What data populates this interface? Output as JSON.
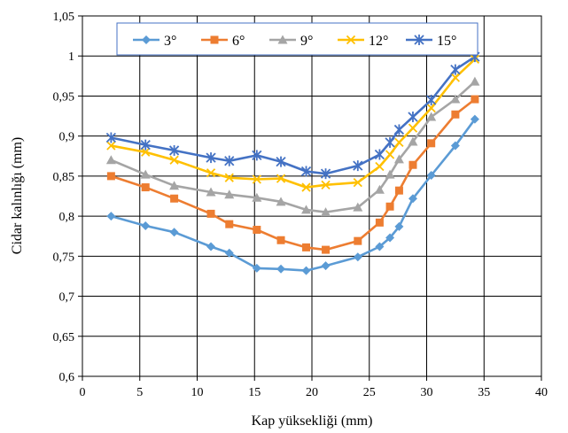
{
  "chart_data": {
    "type": "line",
    "title": "",
    "xlabel": "Kap yüksekliği (mm)",
    "ylabel": "Cidar kalınlığı (mm)",
    "xlim": [
      0,
      40
    ],
    "ylim": [
      0.6,
      1.05
    ],
    "x_ticks": [
      0,
      5,
      10,
      15,
      20,
      25,
      30,
      35,
      40
    ],
    "y_ticks": [
      0.6,
      0.65,
      0.7,
      0.75,
      0.8,
      0.85,
      0.9,
      0.95,
      1.0,
      1.05
    ],
    "x_tick_labels": [
      "0",
      "5",
      "10",
      "15",
      "20",
      "25",
      "30",
      "35",
      "40"
    ],
    "y_tick_labels": [
      "0,6",
      "0,65",
      "0,7",
      "0,75",
      "0,8",
      "0,85",
      "0,9",
      "0,95",
      "1",
      "1,05"
    ],
    "grid": true,
    "legend_position": "top",
    "series": [
      {
        "name": "3°",
        "color": "#5B9BD5",
        "marker": "diamond",
        "points": [
          [
            2.5,
            0.8
          ],
          [
            5.5,
            0.788
          ],
          [
            8.0,
            0.78
          ],
          [
            11.2,
            0.762
          ],
          [
            12.8,
            0.754
          ],
          [
            15.2,
            0.735
          ],
          [
            17.3,
            0.734
          ],
          [
            19.5,
            0.732
          ],
          [
            21.2,
            0.738
          ],
          [
            24.0,
            0.749
          ],
          [
            25.9,
            0.762
          ],
          [
            26.8,
            0.773
          ],
          [
            27.6,
            0.787
          ],
          [
            28.8,
            0.822
          ],
          [
            30.4,
            0.851
          ],
          [
            32.5,
            0.888
          ],
          [
            34.2,
            0.921
          ]
        ]
      },
      {
        "name": "6°",
        "color": "#ED7D31",
        "marker": "square",
        "points": [
          [
            2.5,
            0.85
          ],
          [
            5.5,
            0.836
          ],
          [
            8.0,
            0.822
          ],
          [
            11.2,
            0.803
          ],
          [
            12.8,
            0.79
          ],
          [
            15.2,
            0.783
          ],
          [
            17.3,
            0.77
          ],
          [
            19.5,
            0.761
          ],
          [
            21.2,
            0.758
          ],
          [
            24.0,
            0.769
          ],
          [
            25.9,
            0.792
          ],
          [
            26.8,
            0.812
          ],
          [
            27.6,
            0.832
          ],
          [
            28.8,
            0.864
          ],
          [
            30.4,
            0.891
          ],
          [
            32.5,
            0.927
          ],
          [
            34.2,
            0.946
          ]
        ]
      },
      {
        "name": "9°",
        "color": "#A5A5A5",
        "marker": "triangle",
        "points": [
          [
            2.5,
            0.87
          ],
          [
            5.5,
            0.852
          ],
          [
            8.0,
            0.838
          ],
          [
            11.2,
            0.83
          ],
          [
            12.8,
            0.827
          ],
          [
            15.2,
            0.823
          ],
          [
            17.3,
            0.818
          ],
          [
            19.5,
            0.808
          ],
          [
            21.2,
            0.805
          ],
          [
            24.0,
            0.811
          ],
          [
            25.9,
            0.833
          ],
          [
            26.8,
            0.852
          ],
          [
            27.6,
            0.871
          ],
          [
            28.8,
            0.893
          ],
          [
            30.4,
            0.924
          ],
          [
            32.5,
            0.946
          ],
          [
            34.2,
            0.968
          ]
        ]
      },
      {
        "name": "12°",
        "color": "#FFC000",
        "marker": "x",
        "points": [
          [
            2.5,
            0.888
          ],
          [
            5.5,
            0.88
          ],
          [
            8.0,
            0.87
          ],
          [
            11.2,
            0.854
          ],
          [
            12.8,
            0.848
          ],
          [
            15.2,
            0.846
          ],
          [
            17.3,
            0.847
          ],
          [
            19.5,
            0.836
          ],
          [
            21.2,
            0.839
          ],
          [
            24.0,
            0.842
          ],
          [
            25.9,
            0.862
          ],
          [
            26.8,
            0.877
          ],
          [
            27.6,
            0.892
          ],
          [
            28.8,
            0.91
          ],
          [
            30.4,
            0.935
          ],
          [
            32.5,
            0.973
          ],
          [
            34.2,
            0.996
          ]
        ]
      },
      {
        "name": "15°",
        "color": "#4472C4",
        "marker": "star",
        "points": [
          [
            2.5,
            0.898
          ],
          [
            5.5,
            0.889
          ],
          [
            8.0,
            0.882
          ],
          [
            11.2,
            0.873
          ],
          [
            12.8,
            0.869
          ],
          [
            15.2,
            0.876
          ],
          [
            17.3,
            0.868
          ],
          [
            19.5,
            0.856
          ],
          [
            21.2,
            0.853
          ],
          [
            24.0,
            0.863
          ],
          [
            25.9,
            0.877
          ],
          [
            26.8,
            0.892
          ],
          [
            27.6,
            0.908
          ],
          [
            28.8,
            0.924
          ],
          [
            30.4,
            0.945
          ],
          [
            32.5,
            0.983
          ],
          [
            34.2,
            0.999
          ]
        ]
      }
    ]
  }
}
